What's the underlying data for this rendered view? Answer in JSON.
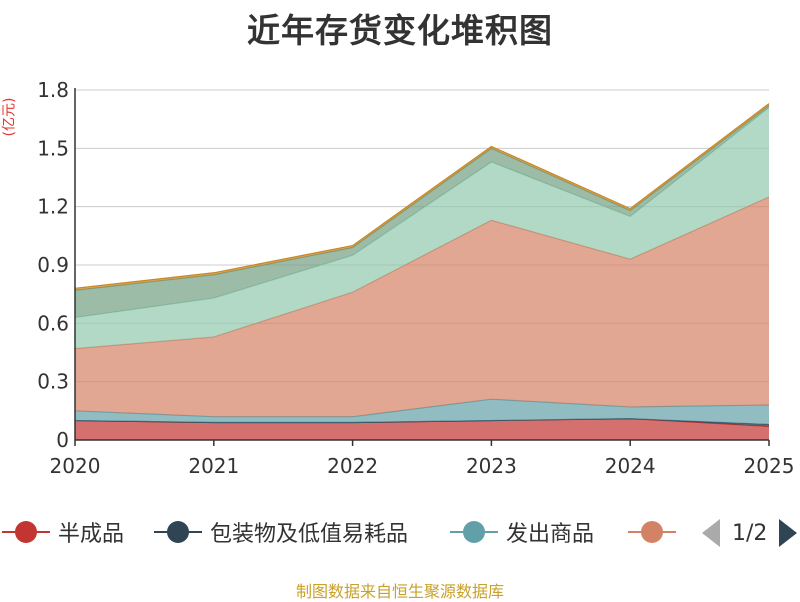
{
  "chart_data": {
    "type": "area",
    "stacked": true,
    "title": "近年存货变化堆积图",
    "ylabel": "(亿元)",
    "categories": [
      "2020",
      "2021",
      "2022",
      "2023",
      "2024",
      "2025"
    ],
    "ylim": [
      0,
      1.8
    ],
    "yticks": [
      "0",
      "0.3",
      "0.6",
      "0.9",
      "1.2",
      "1.5",
      "1.8"
    ],
    "grid": true,
    "series": [
      {
        "name": "半成品",
        "color": "#c23531",
        "values": [
          0.1,
          0.09,
          0.09,
          0.1,
          0.11,
          0.07
        ]
      },
      {
        "name": "包装物及低值易耗品",
        "color": "#2f4554",
        "values": [
          0.0,
          0.0,
          0.0,
          0.0,
          0.0,
          0.01
        ]
      },
      {
        "name": "发出商品",
        "color": "#61a0a8",
        "values": [
          0.05,
          0.03,
          0.03,
          0.11,
          0.06,
          0.1
        ]
      },
      {
        "name": "",
        "color": "#d48265",
        "values": [
          0.32,
          0.41,
          0.64,
          0.92,
          0.76,
          1.07
        ]
      },
      {
        "name": "",
        "color": "#91c7ae",
        "values": [
          0.16,
          0.2,
          0.19,
          0.3,
          0.22,
          0.46
        ]
      },
      {
        "name": "",
        "color": "#749f83",
        "values": [
          0.14,
          0.12,
          0.04,
          0.07,
          0.03,
          0.01
        ]
      },
      {
        "name": "",
        "color": "#ca8622",
        "values": [
          0.01,
          0.01,
          0.01,
          0.01,
          0.01,
          0.01
        ]
      }
    ]
  },
  "legend": {
    "items": [
      {
        "label": "半成品",
        "color": "#c23531"
      },
      {
        "label": "包装物及低值易耗品",
        "color": "#2f4554"
      },
      {
        "label": "发出商品",
        "color": "#61a0a8"
      },
      {
        "label": "",
        "color": "#d48265"
      }
    ],
    "page_text": "1/2"
  },
  "footer": {
    "source": "制图数据来自恒生聚源数据库"
  }
}
